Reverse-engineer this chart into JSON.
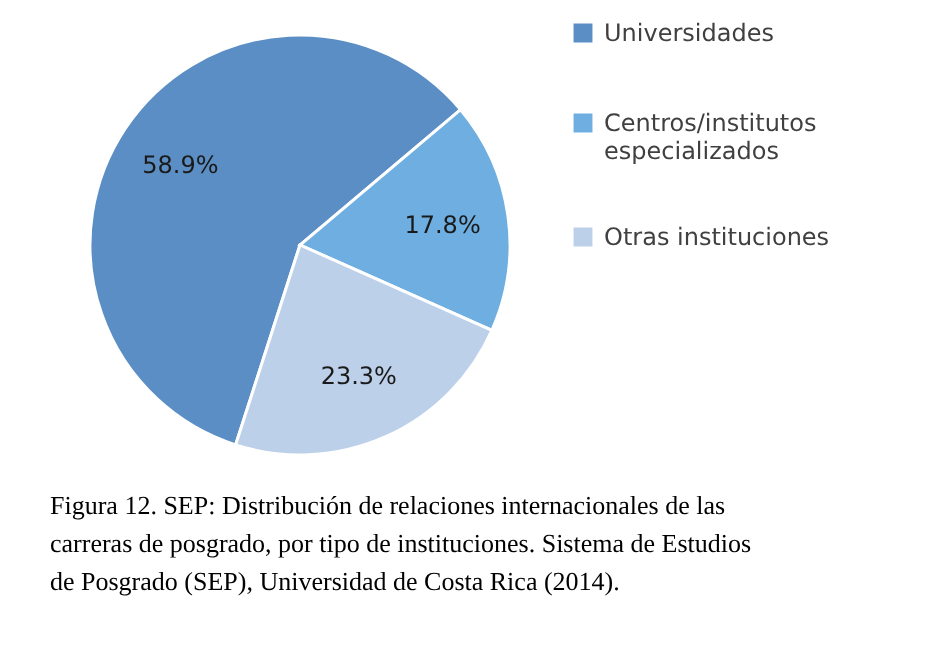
{
  "chart_data": {
    "type": "pie",
    "categories": [
      "Universidades",
      "Centros/institutos especializados",
      "Otras instituciones"
    ],
    "values": [
      58.9,
      17.8,
      23.3
    ],
    "colors": [
      "#5b8ec4",
      "#6eaee0",
      "#bdd0ea"
    ],
    "value_labels": [
      "58.9%",
      "17.8%",
      "23.3%"
    ],
    "legend": "right",
    "annotations": [
      "Figura 12. SEP: Distribución de relaciones internacionales de las carreras de posgrado, por tipo de instituciones. Sistema de Estudios de Posgrado (SEP), Universidad de Costa Rica (2014)."
    ]
  }
}
